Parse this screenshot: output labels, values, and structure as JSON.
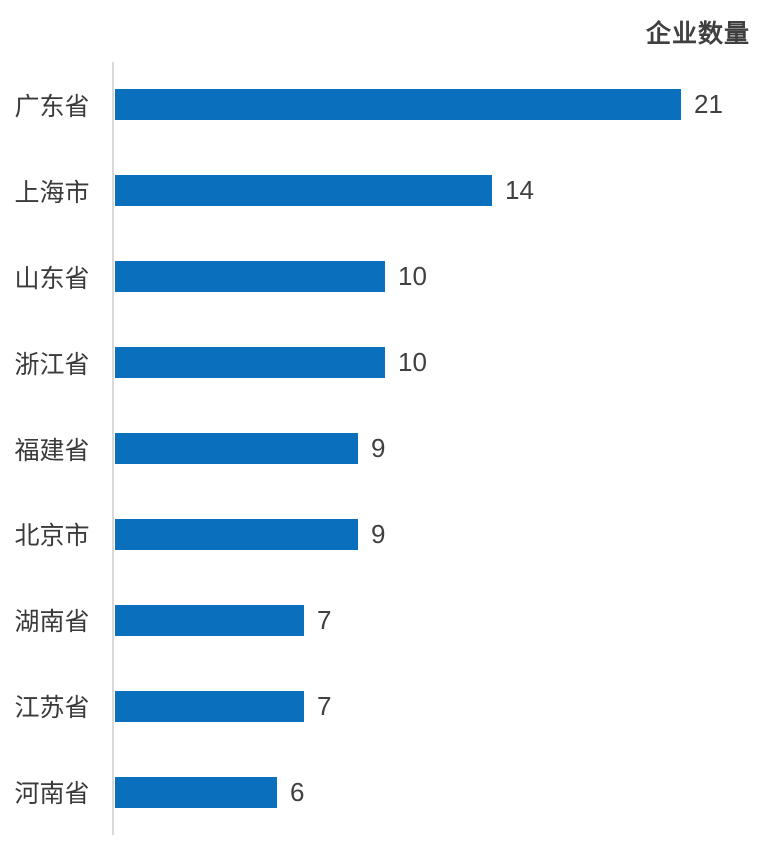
{
  "title": "企业数量",
  "colors": {
    "bar": "#0a70bd",
    "axis": "#d9d9d9",
    "title_text": "#404040",
    "value_text": "#404040",
    "category_text": "#3a3a3a",
    "background": "#ffffff"
  },
  "chart_data": {
    "type": "bar",
    "orientation": "horizontal",
    "title": "企业数量",
    "categories": [
      "广东省",
      "上海市",
      "山东省",
      "浙江省",
      "福建省",
      "北京市",
      "湖南省",
      "江苏省",
      "河南省"
    ],
    "values": [
      21,
      14,
      10,
      10,
      9,
      9,
      7,
      7,
      6
    ],
    "xlabel": "",
    "ylabel": "",
    "xlim": [
      0,
      21
    ],
    "value_labels_shown": true,
    "grid": false,
    "legend": false,
    "sort_order": "descending"
  }
}
